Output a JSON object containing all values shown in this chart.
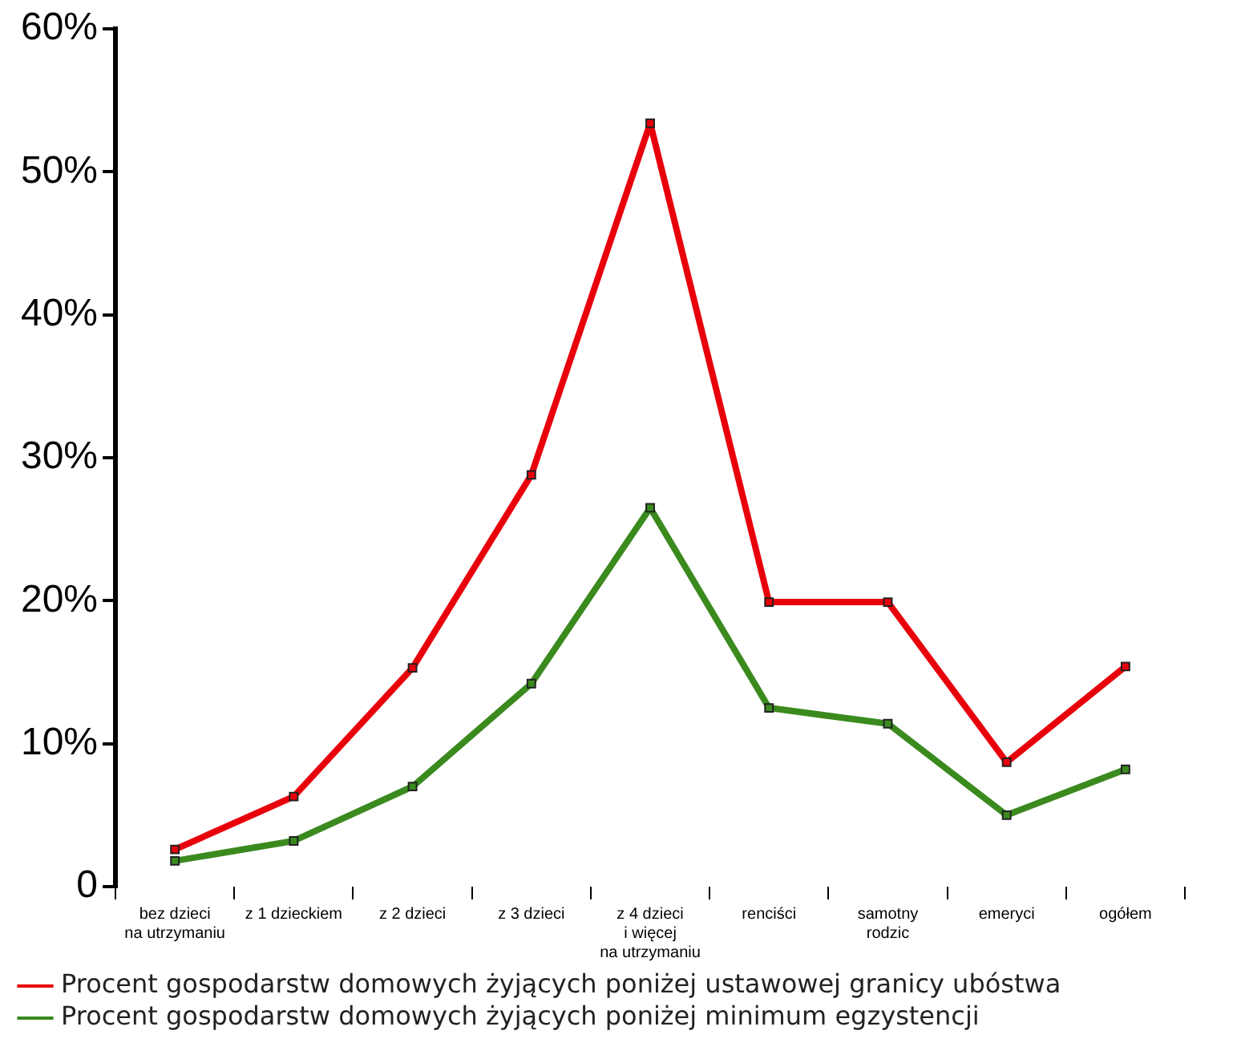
{
  "chart_data": {
    "type": "line",
    "categories": [
      "bez dzieci\nna utrzymaniu",
      "z 1 dzieckiem",
      "z 2 dzieci",
      "z 3 dzieci",
      "z 4 dzieci\ni więcej\nna utrzymaniu",
      "renciści",
      "samotny\nrodzic",
      "emeryci",
      "ogółem"
    ],
    "series": [
      {
        "name": "Procent gospodarstw domowych żyjących poniżej ustawowej granicy ubóstwa",
        "color": "#e8000b",
        "values": [
          2.6,
          6.3,
          15.3,
          28.8,
          53.4,
          19.9,
          19.9,
          8.7,
          15.4
        ]
      },
      {
        "name": "Procent gospodarstw domowych żyjących poniżej minimum egzystencji",
        "color": "#3a8a1e",
        "values": [
          1.8,
          3.2,
          7.0,
          14.2,
          26.5,
          12.5,
          11.4,
          5.0,
          8.2
        ]
      }
    ],
    "ylim": [
      0,
      60
    ],
    "yticks": [
      0,
      {
        "value": 10,
        "label": "10%"
      },
      {
        "value": 20,
        "label": "20%"
      },
      {
        "value": 30,
        "label": "30%"
      },
      {
        "value": 40,
        "label": "40%"
      },
      {
        "value": 50,
        "label": "50%"
      },
      {
        "value": 60,
        "label": "60%"
      }
    ],
    "grid": false,
    "legend": "bottom",
    "marker": "square",
    "line_style": "solid"
  }
}
